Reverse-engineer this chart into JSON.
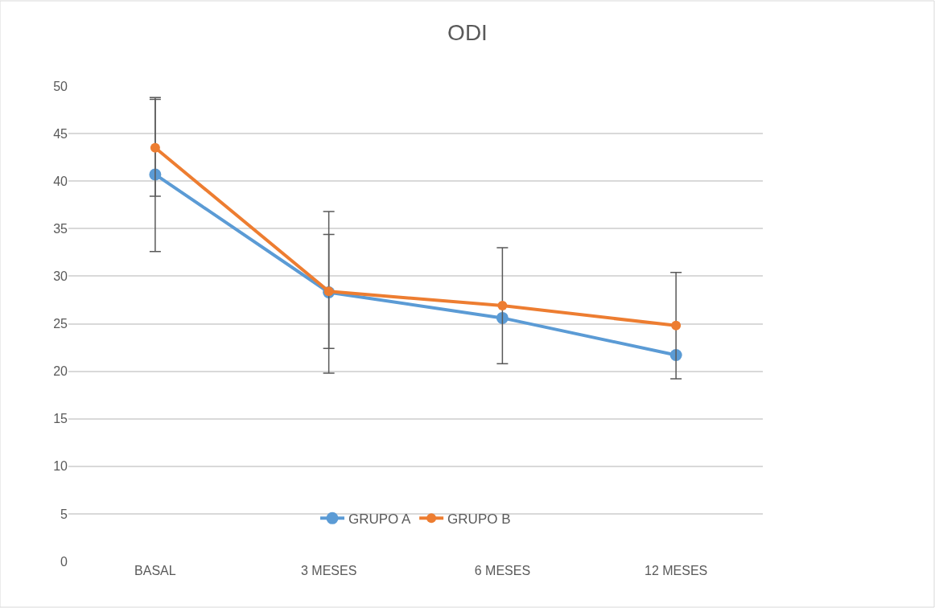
{
  "chart_data": {
    "type": "line",
    "title": "ODI",
    "categories": [
      "BASAL",
      "3 MESES",
      "6 MESES",
      "12 MESES"
    ],
    "series": [
      {
        "name": "GRUPO A",
        "color": "#5b9bd5",
        "values": [
          40.7,
          28.3,
          25.6,
          21.7
        ],
        "errors": [
          8.1,
          8.5,
          null,
          null
        ]
      },
      {
        "name": "GRUPO B",
        "color": "#ed7d31",
        "values": [
          43.5,
          28.4,
          26.9,
          24.8
        ],
        "errors": [
          5.1,
          6.0,
          6.1,
          5.6
        ]
      }
    ],
    "ylim": [
      0,
      50
    ],
    "yticks": [
      0,
      5,
      10,
      15,
      20,
      25,
      30,
      35,
      40,
      45,
      50
    ],
    "grid": "y",
    "legend": "bottom",
    "marker": "circle",
    "line_style": "solid"
  }
}
